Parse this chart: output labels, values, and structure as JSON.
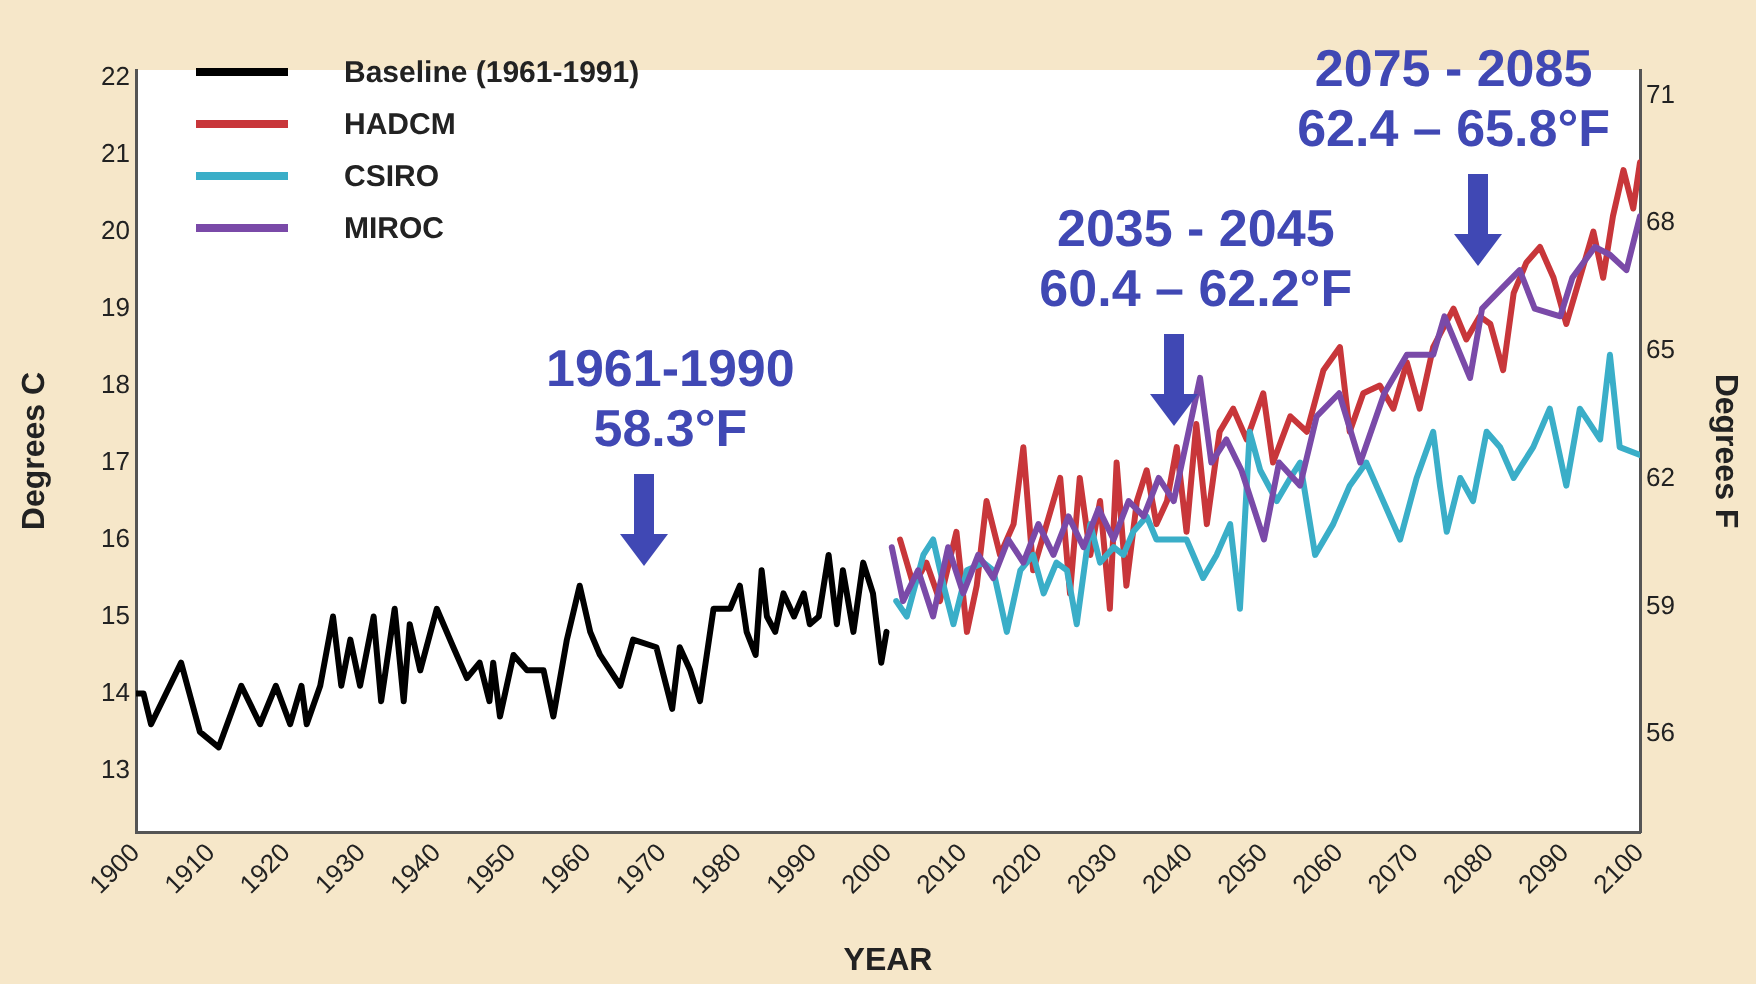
{
  "chart_data": {
    "type": "line",
    "xlabel": "YEAR",
    "ylabel": "Degrees C",
    "y2label": "Degrees F",
    "xlim": [
      1900,
      2100
    ],
    "xticks": [
      1900,
      1910,
      1920,
      1930,
      1940,
      1950,
      1960,
      1970,
      1980,
      1990,
      2000,
      2010,
      2020,
      2030,
      2040,
      2050,
      2060,
      2070,
      2080,
      2090,
      2100
    ],
    "ylim": [
      12.2,
      22.1
    ],
    "yticks": [
      13,
      14,
      15,
      16,
      17,
      18,
      19,
      20,
      21,
      22
    ],
    "y2lim": [
      53.7,
      71.6
    ],
    "y2ticks": [
      56,
      59,
      62,
      65,
      68,
      71
    ],
    "legend": "top left",
    "marker": "none",
    "line_style": "solid",
    "annotations": [
      "1961-1990\n58.3°F",
      "2035 - 2045\n60.4 – 62.2°F",
      "2075 - 2085\n62.4 – 65.8°F"
    ],
    "series": [
      {
        "name": "Baseline (1961-1991)",
        "color": "#000000",
        "x": [
          1900,
          1901,
          1902,
          1906,
          1908.5,
          1911,
          1914,
          1916.5,
          1918.6,
          1920.5,
          1922,
          1922.7,
          1924.5,
          1926.2,
          1927.3,
          1928.5,
          1929.8,
          1931.6,
          1932.6,
          1934.4,
          1935.6,
          1936.4,
          1937.8,
          1940,
          1942.2,
          1944,
          1945.7,
          1947,
          1947.5,
          1948.4,
          1950.2,
          1952,
          1954.2,
          1955.5,
          1957.3,
          1959,
          1960.4,
          1961.7,
          1964.4,
          1966.1,
          1969.2,
          1971.3,
          1972.3,
          1973.7,
          1975,
          1976.8,
          1979,
          1980.3,
          1981.2,
          1982.4,
          1983.2,
          1983.9,
          1985,
          1986.1,
          1987.5,
          1988.8,
          1989.6,
          1990.8,
          1992.1,
          1993.2,
          1994,
          1995.4,
          1996.7,
          1998,
          1999.1,
          1999.8
        ],
        "values": [
          14.0,
          14.0,
          13.6,
          14.4,
          13.5,
          13.3,
          14.1,
          13.6,
          14.1,
          13.6,
          14.1,
          13.6,
          14.1,
          15.0,
          14.1,
          14.7,
          14.1,
          15.0,
          13.9,
          15.1,
          13.9,
          14.9,
          14.3,
          15.1,
          14.6,
          14.2,
          14.4,
          13.9,
          14.4,
          13.7,
          14.5,
          14.3,
          14.3,
          13.7,
          14.7,
          15.4,
          14.8,
          14.5,
          14.1,
          14.7,
          14.6,
          13.8,
          14.6,
          14.3,
          13.9,
          15.1,
          15.1,
          15.4,
          14.8,
          14.5,
          15.6,
          15.0,
          14.8,
          15.3,
          15.0,
          15.3,
          14.9,
          15.0,
          15.8,
          14.9,
          15.6,
          14.8,
          15.7,
          15.3,
          14.4,
          14.8
        ]
      },
      {
        "name": "HADCM",
        "color": "#c8363a",
        "x": [
          2001.6,
          2003.4,
          2005.1,
          2006.9,
          2009.1,
          2010.5,
          2011.8,
          2013.1,
          2014.9,
          2016.7,
          2018,
          2019.3,
          2021.1,
          2022.9,
          2024.2,
          2025.5,
          2026.9,
          2028.2,
          2029.5,
          2030.4,
          2031.7,
          2033.1,
          2034.4,
          2035.7,
          2037.1,
          2038.4,
          2039.7,
          2041,
          2042.4,
          2044.1,
          2045.9,
          2047.7,
          2049.9,
          2051.2,
          2053.5,
          2055.7,
          2057.9,
          2060.1,
          2061.4,
          2063.2,
          2065.4,
          2067.2,
          2069,
          2070.7,
          2072.5,
          2075.2,
          2076.9,
          2078.7,
          2080.1,
          2081.8,
          2083.2,
          2084.9,
          2086.7,
          2088.5,
          2090.2,
          2092,
          2093.8,
          2095.1,
          2096.4,
          2097.8,
          2099.1,
          2100
        ],
        "values": [
          16.0,
          15.4,
          15.7,
          15.2,
          16.1,
          14.8,
          15.4,
          16.5,
          15.8,
          16.2,
          17.2,
          15.6,
          16.2,
          16.8,
          15.3,
          16.8,
          15.8,
          16.5,
          15.1,
          17.0,
          15.4,
          16.5,
          16.9,
          16.2,
          16.5,
          17.2,
          16.1,
          17.5,
          16.2,
          17.4,
          17.7,
          17.3,
          17.9,
          17.0,
          17.6,
          17.4,
          18.2,
          18.5,
          17.4,
          17.9,
          18.0,
          17.7,
          18.3,
          17.7,
          18.5,
          19.0,
          18.6,
          18.9,
          18.8,
          18.2,
          19.2,
          19.6,
          19.8,
          19.4,
          18.8,
          19.4,
          20.0,
          19.4,
          20.2,
          20.8,
          20.3,
          20.9
        ]
      },
      {
        "name": "CSIRO",
        "color": "#3aaec8",
        "x": [
          2001.1,
          2002.5,
          2004.7,
          2006,
          2007.4,
          2008.7,
          2010.5,
          2012.7,
          2014,
          2015.8,
          2017.6,
          2019.3,
          2020.7,
          2022.4,
          2023.8,
          2025.1,
          2026.9,
          2028.2,
          2030,
          2031.3,
          2032.6,
          2034.4,
          2035.7,
          2037.9,
          2039.7,
          2041.9,
          2043.7,
          2045.5,
          2046.8,
          2048.1,
          2049.5,
          2051.7,
          2053.5,
          2054.8,
          2056.8,
          2059.2,
          2061.4,
          2063.6,
          2065.4,
          2068.1,
          2070.3,
          2072.5,
          2073.4,
          2074.3,
          2076.1,
          2077.8,
          2079.6,
          2081.4,
          2083.2,
          2085.8,
          2088,
          2090.2,
          2092,
          2094.7,
          2096,
          2097.3,
          2100
        ],
        "values": [
          15.2,
          15.0,
          15.8,
          16.0,
          15.4,
          14.9,
          15.6,
          15.7,
          15.6,
          14.8,
          15.6,
          15.8,
          15.3,
          15.7,
          15.6,
          14.9,
          16.2,
          15.7,
          15.9,
          15.8,
          16.1,
          16.3,
          16.0,
          16.0,
          16.0,
          15.5,
          15.8,
          16.2,
          15.1,
          17.4,
          16.9,
          16.5,
          16.8,
          17.0,
          15.8,
          16.2,
          16.7,
          17.0,
          16.6,
          16.0,
          16.8,
          17.4,
          16.7,
          16.1,
          16.8,
          16.5,
          17.4,
          17.2,
          16.8,
          17.2,
          17.7,
          16.7,
          17.7,
          17.3,
          18.4,
          17.2,
          17.1
        ]
      },
      {
        "name": "MIROC",
        "color": "#7a4aa8",
        "x": [
          2000.5,
          2002,
          2004,
          2006,
          2008,
          2010,
          2012,
          2014,
          2016,
          2018,
          2020,
          2022,
          2024,
          2026,
          2028,
          2030,
          2032,
          2034,
          2036,
          2038,
          2041.5,
          2043,
          2045,
          2047,
          2050,
          2052,
          2054.8,
          2057,
          2060,
          2062.8,
          2066,
          2069,
          2072.5,
          2074,
          2077.4,
          2079,
          2081,
          2084,
          2086,
          2089.4,
          2091,
          2094,
          2096,
          2098.2,
          2100
        ],
        "values": [
          15.9,
          15.2,
          15.6,
          15.0,
          15.9,
          15.3,
          15.8,
          15.5,
          16.0,
          15.7,
          16.2,
          15.8,
          16.3,
          15.9,
          16.4,
          16.0,
          16.5,
          16.3,
          16.8,
          16.5,
          18.1,
          17.0,
          17.3,
          16.9,
          16.0,
          17.0,
          16.7,
          17.6,
          17.9,
          17.0,
          17.9,
          18.4,
          18.4,
          18.9,
          18.1,
          19.0,
          19.2,
          19.5,
          19.0,
          18.9,
          19.4,
          19.8,
          19.7,
          19.5,
          20.2
        ]
      }
    ]
  }
}
